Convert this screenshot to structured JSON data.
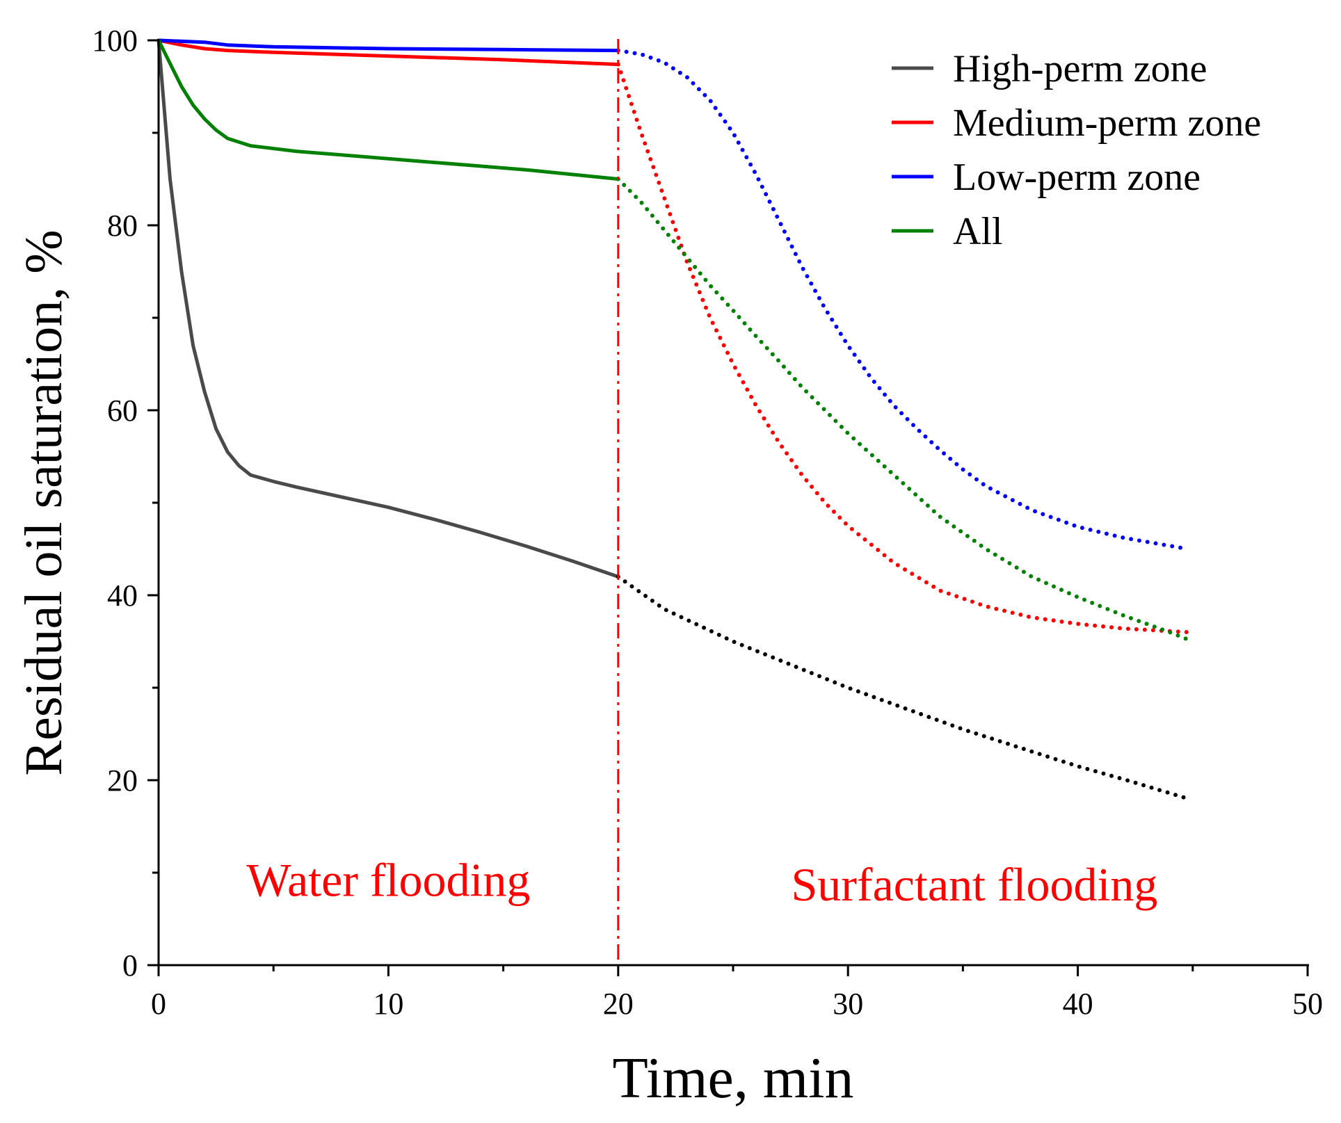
{
  "chart_data": {
    "type": "line",
    "title": "",
    "xlabel": "Time, min",
    "ylabel": "Residual oil saturation, %",
    "xlim": [
      0,
      50
    ],
    "ylim": [
      0,
      100
    ],
    "xticks": [
      0,
      10,
      20,
      30,
      40,
      50
    ],
    "yticks": [
      0,
      20,
      40,
      60,
      80,
      100
    ],
    "xtick_labels": [
      "0",
      "10",
      "20",
      "30",
      "40",
      "50"
    ],
    "ytick_labels": [
      "0",
      "20",
      "40",
      "60",
      "80",
      "100"
    ],
    "grid": false,
    "legend_position": "top-right",
    "phase_boundary_x": 20,
    "boundary_color": "#ff0000",
    "annotations": [
      {
        "text": "Water flooding",
        "x": 10,
        "y": 7.5,
        "color": "#ff0000"
      },
      {
        "text": "Surfactant flooding",
        "x": 35.5,
        "y": 7,
        "color": "#ff0000"
      }
    ],
    "series": [
      {
        "name": "High-perm zone",
        "color": "#4a4a4a",
        "dotted_color": "#000000",
        "solid": [
          [
            0,
            100
          ],
          [
            0.5,
            85
          ],
          [
            1,
            75
          ],
          [
            1.5,
            67
          ],
          [
            2,
            62
          ],
          [
            2.5,
            58
          ],
          [
            3,
            55.5
          ],
          [
            3.5,
            54
          ],
          [
            4,
            53
          ],
          [
            5,
            52.3
          ],
          [
            6,
            51.7
          ],
          [
            8,
            50.6
          ],
          [
            10,
            49.5
          ],
          [
            12,
            48.2
          ],
          [
            14,
            46.8
          ],
          [
            16,
            45.3
          ],
          [
            18,
            43.7
          ],
          [
            20,
            42
          ]
        ],
        "dotted": [
          [
            20,
            42
          ],
          [
            22,
            38.5
          ],
          [
            25,
            35
          ],
          [
            28,
            32
          ],
          [
            30,
            30
          ],
          [
            33,
            27.3
          ],
          [
            35,
            25.5
          ],
          [
            38,
            23.1
          ],
          [
            40,
            21.5
          ],
          [
            42,
            20.1
          ],
          [
            44.8,
            18
          ]
        ]
      },
      {
        "name": "Medium-perm zone",
        "color": "#ff0000",
        "dotted_color": "#ff0000",
        "solid": [
          [
            0,
            100
          ],
          [
            1,
            99.5
          ],
          [
            2,
            99.1
          ],
          [
            3,
            98.9
          ],
          [
            5,
            98.7
          ],
          [
            10,
            98.3
          ],
          [
            15,
            97.9
          ],
          [
            20,
            97.4
          ]
        ],
        "dotted": [
          [
            20,
            97.4
          ],
          [
            21,
            90
          ],
          [
            22,
            83
          ],
          [
            23,
            76
          ],
          [
            24,
            70
          ],
          [
            25,
            65
          ],
          [
            26,
            60.5
          ],
          [
            27,
            56.5
          ],
          [
            28,
            53
          ],
          [
            29,
            50
          ],
          [
            30,
            47.5
          ],
          [
            32,
            43.5
          ],
          [
            34,
            40.5
          ],
          [
            36,
            38.8
          ],
          [
            38,
            37.6
          ],
          [
            40,
            36.9
          ],
          [
            42,
            36.4
          ],
          [
            44.8,
            36
          ]
        ]
      },
      {
        "name": "Low-perm zone",
        "color": "#0000ff",
        "dotted_color": "#0000ff",
        "solid": [
          [
            0,
            100
          ],
          [
            2,
            99.8
          ],
          [
            3,
            99.5
          ],
          [
            5,
            99.3
          ],
          [
            10,
            99.1
          ],
          [
            15,
            99
          ],
          [
            20,
            98.9
          ]
        ],
        "dotted": [
          [
            20,
            98.9
          ],
          [
            21,
            98.5
          ],
          [
            22,
            97.6
          ],
          [
            23,
            96
          ],
          [
            24,
            93.5
          ],
          [
            25,
            90
          ],
          [
            26,
            85.5
          ],
          [
            27,
            80.5
          ],
          [
            28,
            75.5
          ],
          [
            29,
            71
          ],
          [
            30,
            67
          ],
          [
            31,
            63.5
          ],
          [
            32,
            60.5
          ],
          [
            33,
            58
          ],
          [
            34,
            55.7
          ],
          [
            35,
            53.6
          ],
          [
            36,
            51.8
          ],
          [
            38,
            49.2
          ],
          [
            40,
            47.4
          ],
          [
            42,
            46.2
          ],
          [
            44.8,
            45
          ]
        ]
      },
      {
        "name": "All",
        "color": "#008000",
        "dotted_color": "#008000",
        "solid": [
          [
            0,
            100
          ],
          [
            0.5,
            97.5
          ],
          [
            1,
            95
          ],
          [
            1.5,
            93
          ],
          [
            2,
            91.5
          ],
          [
            2.5,
            90.3
          ],
          [
            3,
            89.4
          ],
          [
            4,
            88.6
          ],
          [
            6,
            88
          ],
          [
            8,
            87.6
          ],
          [
            10,
            87.2
          ],
          [
            12,
            86.8
          ],
          [
            14,
            86.4
          ],
          [
            16,
            86
          ],
          [
            18,
            85.5
          ],
          [
            20,
            85
          ]
        ],
        "dotted": [
          [
            20,
            85
          ],
          [
            21,
            82.5
          ],
          [
            22,
            79.5
          ],
          [
            23,
            76.5
          ],
          [
            24,
            73.5
          ],
          [
            25,
            70.8
          ],
          [
            26,
            68
          ],
          [
            27,
            65.3
          ],
          [
            28,
            62.5
          ],
          [
            29,
            60
          ],
          [
            30,
            57.5
          ],
          [
            32,
            53
          ],
          [
            34,
            48.5
          ],
          [
            36,
            45
          ],
          [
            38,
            42
          ],
          [
            40,
            39.8
          ],
          [
            42,
            37.8
          ],
          [
            44,
            36
          ],
          [
            45,
            35
          ]
        ]
      }
    ]
  }
}
